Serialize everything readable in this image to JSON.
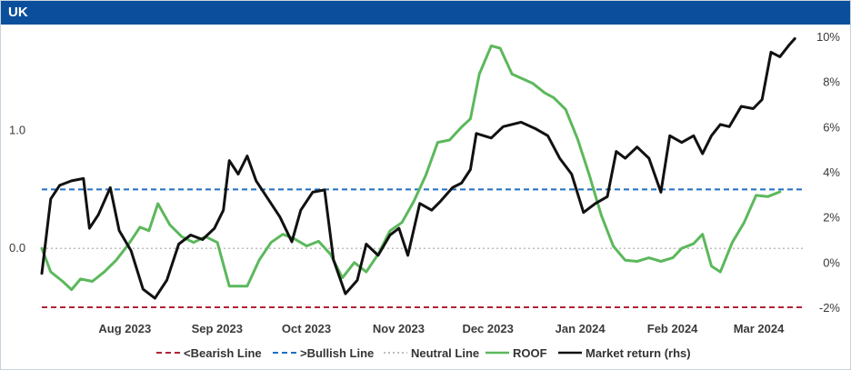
{
  "header": {
    "title": "UK"
  },
  "chart_data": {
    "type": "line",
    "title": "UK",
    "left_axis": {
      "ticks": [
        0.0,
        1.0
      ],
      "tick_labels": [
        "0.0",
        "1.0"
      ],
      "ylim": [
        -0.5,
        1.8
      ]
    },
    "right_axis": {
      "ticks": [
        -2,
        0,
        2,
        4,
        6,
        8,
        10
      ],
      "tick_labels": [
        "-2%",
        "0%",
        "2%",
        "4%",
        "6%",
        "8%",
        "10%"
      ],
      "ylim": [
        -2,
        10
      ]
    },
    "x_axis": {
      "range": [
        "2023-07-20",
        "2024-04-01"
      ],
      "ticks": [
        "2023-08-01",
        "2023-09-01",
        "2023-10-01",
        "2023-11-01",
        "2023-12-01",
        "2024-01-01",
        "2024-02-01",
        "2024-03-01"
      ],
      "tick_labels": [
        "Aug 2023",
        "Sep 2023",
        "Oct 2023",
        "Nov 2023",
        "Dec 2023",
        "Jan 2024",
        "Feb 2024",
        "Mar 2024"
      ]
    },
    "reference_lines": [
      {
        "name": "<Bearish Line",
        "value": -0.5,
        "color": "#b22234",
        "style": "dashed"
      },
      {
        "name": ">Bullish Line",
        "value": 0.5,
        "color": "#1f6fc1",
        "style": "dashed"
      },
      {
        "name": "Neutral Line",
        "value": 0.0,
        "color": "#bdbdbd",
        "style": "dotted"
      }
    ],
    "series": [
      {
        "name": "ROOF",
        "axis": "left",
        "color": "#5cb85c",
        "points": [
          [
            "2023-07-20",
            0.0
          ],
          [
            "2023-07-23",
            -0.2
          ],
          [
            "2023-07-27",
            -0.28
          ],
          [
            "2023-07-30",
            -0.35
          ],
          [
            "2023-08-02",
            -0.26
          ],
          [
            "2023-08-06",
            -0.28
          ],
          [
            "2023-08-10",
            -0.2
          ],
          [
            "2023-08-14",
            -0.1
          ],
          [
            "2023-08-18",
            0.03
          ],
          [
            "2023-08-22",
            0.18
          ],
          [
            "2023-08-25",
            0.15
          ],
          [
            "2023-08-28",
            0.38
          ],
          [
            "2023-09-01",
            0.2
          ],
          [
            "2023-09-05",
            0.1
          ],
          [
            "2023-09-09",
            0.05
          ],
          [
            "2023-09-13",
            0.1
          ],
          [
            "2023-09-17",
            0.05
          ],
          [
            "2023-09-21",
            -0.32
          ],
          [
            "2023-09-24",
            -0.32
          ],
          [
            "2023-09-27",
            -0.32
          ],
          [
            "2023-10-01",
            -0.1
          ],
          [
            "2023-10-05",
            0.05
          ],
          [
            "2023-10-09",
            0.12
          ],
          [
            "2023-10-13",
            0.08
          ],
          [
            "2023-10-17",
            0.02
          ],
          [
            "2023-10-21",
            0.06
          ],
          [
            "2023-10-25",
            -0.05
          ],
          [
            "2023-10-29",
            -0.25
          ],
          [
            "2023-11-02",
            -0.12
          ],
          [
            "2023-11-06",
            -0.2
          ],
          [
            "2023-11-10",
            -0.05
          ],
          [
            "2023-11-14",
            0.15
          ],
          [
            "2023-11-18",
            0.22
          ],
          [
            "2023-11-22",
            0.4
          ],
          [
            "2023-11-26",
            0.62
          ],
          [
            "2023-11-30",
            0.9
          ],
          [
            "2023-12-04",
            0.92
          ],
          [
            "2023-12-08",
            1.03
          ],
          [
            "2023-12-11",
            1.1
          ],
          [
            "2023-12-14",
            1.48
          ],
          [
            "2023-12-18",
            1.72
          ],
          [
            "2023-12-21",
            1.7
          ],
          [
            "2023-12-25",
            1.48
          ],
          [
            "2024-01-01",
            1.4
          ],
          [
            "2024-01-05",
            1.32
          ],
          [
            "2024-01-08",
            1.28
          ],
          [
            "2024-01-12",
            1.18
          ],
          [
            "2024-01-16",
            0.93
          ],
          [
            "2024-01-20",
            0.62
          ],
          [
            "2024-01-24",
            0.28
          ],
          [
            "2024-01-28",
            0.02
          ],
          [
            "2024-02-01",
            -0.1
          ],
          [
            "2024-02-05",
            -0.11
          ],
          [
            "2024-02-09",
            -0.08
          ],
          [
            "2024-02-13",
            -0.11
          ],
          [
            "2024-02-17",
            -0.08
          ],
          [
            "2024-02-20",
            0.0
          ],
          [
            "2024-02-24",
            0.04
          ],
          [
            "2024-02-27",
            0.12
          ],
          [
            "2024-03-01",
            -0.15
          ],
          [
            "2024-03-04",
            -0.2
          ],
          [
            "2024-03-08",
            0.05
          ],
          [
            "2024-03-12",
            0.22
          ],
          [
            "2024-03-16",
            0.45
          ],
          [
            "2024-03-20",
            0.44
          ],
          [
            "2024-03-24",
            0.48
          ]
        ]
      },
      {
        "name": "Market return (rhs)",
        "axis": "right",
        "color": "#111111",
        "points": [
          [
            "2023-07-20",
            -0.5
          ],
          [
            "2023-07-23",
            2.8
          ],
          [
            "2023-07-26",
            3.4
          ],
          [
            "2023-07-30",
            3.6
          ],
          [
            "2023-08-03",
            3.7
          ],
          [
            "2023-08-05",
            1.5
          ],
          [
            "2023-08-08",
            2.1
          ],
          [
            "2023-08-12",
            3.3
          ],
          [
            "2023-08-15",
            1.4
          ],
          [
            "2023-08-19",
            0.5
          ],
          [
            "2023-08-23",
            -1.2
          ],
          [
            "2023-08-27",
            -1.6
          ],
          [
            "2023-08-31",
            -0.8
          ],
          [
            "2023-09-04",
            0.8
          ],
          [
            "2023-09-08",
            1.2
          ],
          [
            "2023-09-12",
            1.0
          ],
          [
            "2023-09-16",
            1.5
          ],
          [
            "2023-09-19",
            2.3
          ],
          [
            "2023-09-21",
            4.5
          ],
          [
            "2023-09-24",
            3.9
          ],
          [
            "2023-09-27",
            4.7
          ],
          [
            "2023-09-30",
            3.6
          ],
          [
            "2023-10-04",
            2.8
          ],
          [
            "2023-10-08",
            2.0
          ],
          [
            "2023-10-12",
            0.9
          ],
          [
            "2023-10-15",
            2.3
          ],
          [
            "2023-10-19",
            3.1
          ],
          [
            "2023-10-23",
            3.2
          ],
          [
            "2023-10-26",
            0.1
          ],
          [
            "2023-10-30",
            -1.4
          ],
          [
            "2023-11-03",
            -0.8
          ],
          [
            "2023-11-06",
            0.8
          ],
          [
            "2023-11-10",
            0.3
          ],
          [
            "2023-11-14",
            1.2
          ],
          [
            "2023-11-17",
            1.5
          ],
          [
            "2023-11-20",
            0.3
          ],
          [
            "2023-11-24",
            2.6
          ],
          [
            "2023-11-28",
            2.3
          ],
          [
            "2023-12-01",
            2.7
          ],
          [
            "2023-12-05",
            3.3
          ],
          [
            "2023-12-08",
            3.5
          ],
          [
            "2023-12-11",
            4.1
          ],
          [
            "2023-12-13",
            5.7
          ],
          [
            "2023-12-18",
            5.5
          ],
          [
            "2023-12-22",
            6.0
          ],
          [
            "2023-12-28",
            6.2
          ],
          [
            "2024-01-02",
            5.9
          ],
          [
            "2024-01-06",
            5.6
          ],
          [
            "2024-01-10",
            4.6
          ],
          [
            "2024-01-14",
            3.9
          ],
          [
            "2024-01-18",
            2.2
          ],
          [
            "2024-01-22",
            2.6
          ],
          [
            "2024-01-26",
            2.9
          ],
          [
            "2024-01-29",
            4.9
          ],
          [
            "2024-02-01",
            4.6
          ],
          [
            "2024-02-05",
            5.1
          ],
          [
            "2024-02-09",
            4.6
          ],
          [
            "2024-02-13",
            3.1
          ],
          [
            "2024-02-16",
            5.6
          ],
          [
            "2024-02-20",
            5.3
          ],
          [
            "2024-02-24",
            5.6
          ],
          [
            "2024-02-27",
            4.8
          ],
          [
            "2024-03-01",
            5.6
          ],
          [
            "2024-03-04",
            6.1
          ],
          [
            "2024-03-07",
            6.0
          ],
          [
            "2024-03-11",
            6.9
          ],
          [
            "2024-03-15",
            6.8
          ],
          [
            "2024-03-18",
            7.2
          ],
          [
            "2024-03-21",
            9.3
          ],
          [
            "2024-03-24",
            9.1
          ],
          [
            "2024-03-27",
            9.6
          ],
          [
            "2024-03-29",
            9.9
          ]
        ]
      }
    ],
    "legend": {
      "position": "bottom",
      "entries": [
        {
          "name": "<Bearish Line",
          "color": "#b22234",
          "style": "dashed"
        },
        {
          "name": ">Bullish Line",
          "color": "#1f6fc1",
          "style": "dashed"
        },
        {
          "name": "Neutral Line",
          "color": "#bdbdbd",
          "style": "dotted"
        },
        {
          "name": "ROOF",
          "color": "#5cb85c",
          "style": "solid"
        },
        {
          "name": "Market return (rhs)",
          "color": "#111111",
          "style": "solid"
        }
      ]
    },
    "grid": false
  }
}
